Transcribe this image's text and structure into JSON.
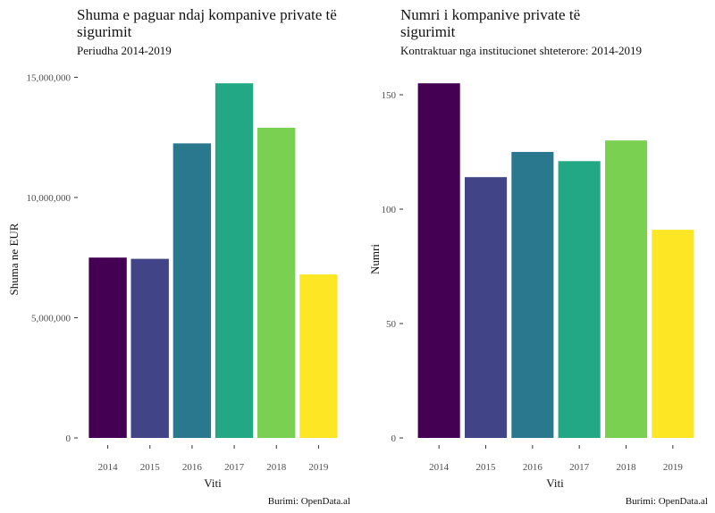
{
  "chart_data": [
    {
      "type": "bar",
      "title_lines": [
        "Shuma e paguar ndaj kompanive private të",
        "sigurimit"
      ],
      "subtitle": "Periudha 2014-2019",
      "xlabel": "Viti",
      "ylabel": "Shuma ne EUR",
      "categories": [
        "2014",
        "2015",
        "2016",
        "2017",
        "2018",
        "2019"
      ],
      "values": [
        7500000,
        7450000,
        12250000,
        14750000,
        12900000,
        6800000
      ],
      "ylim": [
        0,
        15500000
      ],
      "yticks": [
        0,
        5000000,
        10000000,
        15000000
      ],
      "ytick_labels": [
        "0",
        "5,000,000",
        "10,000,000",
        "15,000,000"
      ],
      "colors": [
        "#440154",
        "#414487",
        "#2A788E",
        "#22A884",
        "#7AD151",
        "#FDE725"
      ],
      "caption": "Burimi: OpenData.al",
      "grid": false
    },
    {
      "type": "bar",
      "title_lines": [
        "Numri i kompanive private të",
        "sigurimit"
      ],
      "subtitle": "Kontraktuar nga institucionet shteterore: 2014-2019",
      "xlabel": "Viti",
      "ylabel": "Numri",
      "categories": [
        "2014",
        "2015",
        "2016",
        "2017",
        "2018",
        "2019"
      ],
      "values": [
        155,
        114,
        125,
        121,
        130,
        91
      ],
      "ylim": [
        0,
        159
      ],
      "yticks": [
        0,
        50,
        100,
        150
      ],
      "ytick_labels": [
        "0",
        "50",
        "100",
        "150"
      ],
      "colors": [
        "#440154",
        "#414487",
        "#2A788E",
        "#22A884",
        "#7AD151",
        "#FDE725"
      ],
      "caption": "Burimi: OpenData.al",
      "grid": false
    }
  ]
}
